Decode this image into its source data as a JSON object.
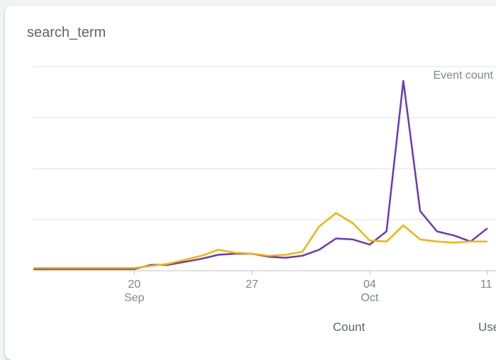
{
  "card": {
    "title": "search_term"
  },
  "chart_data": {
    "type": "line",
    "y_axis_label": "Event count",
    "x_ticks": [
      {
        "day": "20",
        "month": "Sep"
      },
      {
        "day": "27",
        "month": ""
      },
      {
        "day": "04",
        "month": "Oct"
      },
      {
        "day": "11",
        "month": ""
      }
    ],
    "x_dates": [
      "Sep 14",
      "Sep 15",
      "Sep 16",
      "Sep 17",
      "Sep 18",
      "Sep 19",
      "Sep 20",
      "Sep 21",
      "Sep 22",
      "Sep 23",
      "Sep 24",
      "Sep 25",
      "Sep 26",
      "Sep 27",
      "Sep 28",
      "Sep 29",
      "Sep 30",
      "Oct 01",
      "Oct 02",
      "Oct 03",
      "Oct 04",
      "Oct 05",
      "Oct 06",
      "Oct 07",
      "Oct 08",
      "Oct 09",
      "Oct 10",
      "Oct 11"
    ],
    "ylim": [
      0,
      100
    ],
    "grid": true,
    "series": [
      {
        "color": "#673ab7",
        "values": [
          0.5,
          0.5,
          0.5,
          0.5,
          0.5,
          0.5,
          0.5,
          2.5,
          2.5,
          4,
          5.5,
          7.5,
          8,
          8,
          6.5,
          6,
          7,
          10,
          15.5,
          15,
          12.5,
          19,
          93,
          29,
          19,
          17,
          14,
          20.5
        ]
      },
      {
        "color": "#f4b400",
        "values": [
          1,
          1,
          1,
          1,
          1,
          1,
          1,
          2,
          3,
          5,
          7,
          10,
          8.5,
          8,
          7,
          7.5,
          9,
          21.5,
          28,
          23,
          14.5,
          14,
          22,
          15,
          14,
          13.5,
          14,
          14
        ]
      }
    ]
  },
  "legend": {
    "count_label": "Count",
    "user_label": "Use"
  }
}
